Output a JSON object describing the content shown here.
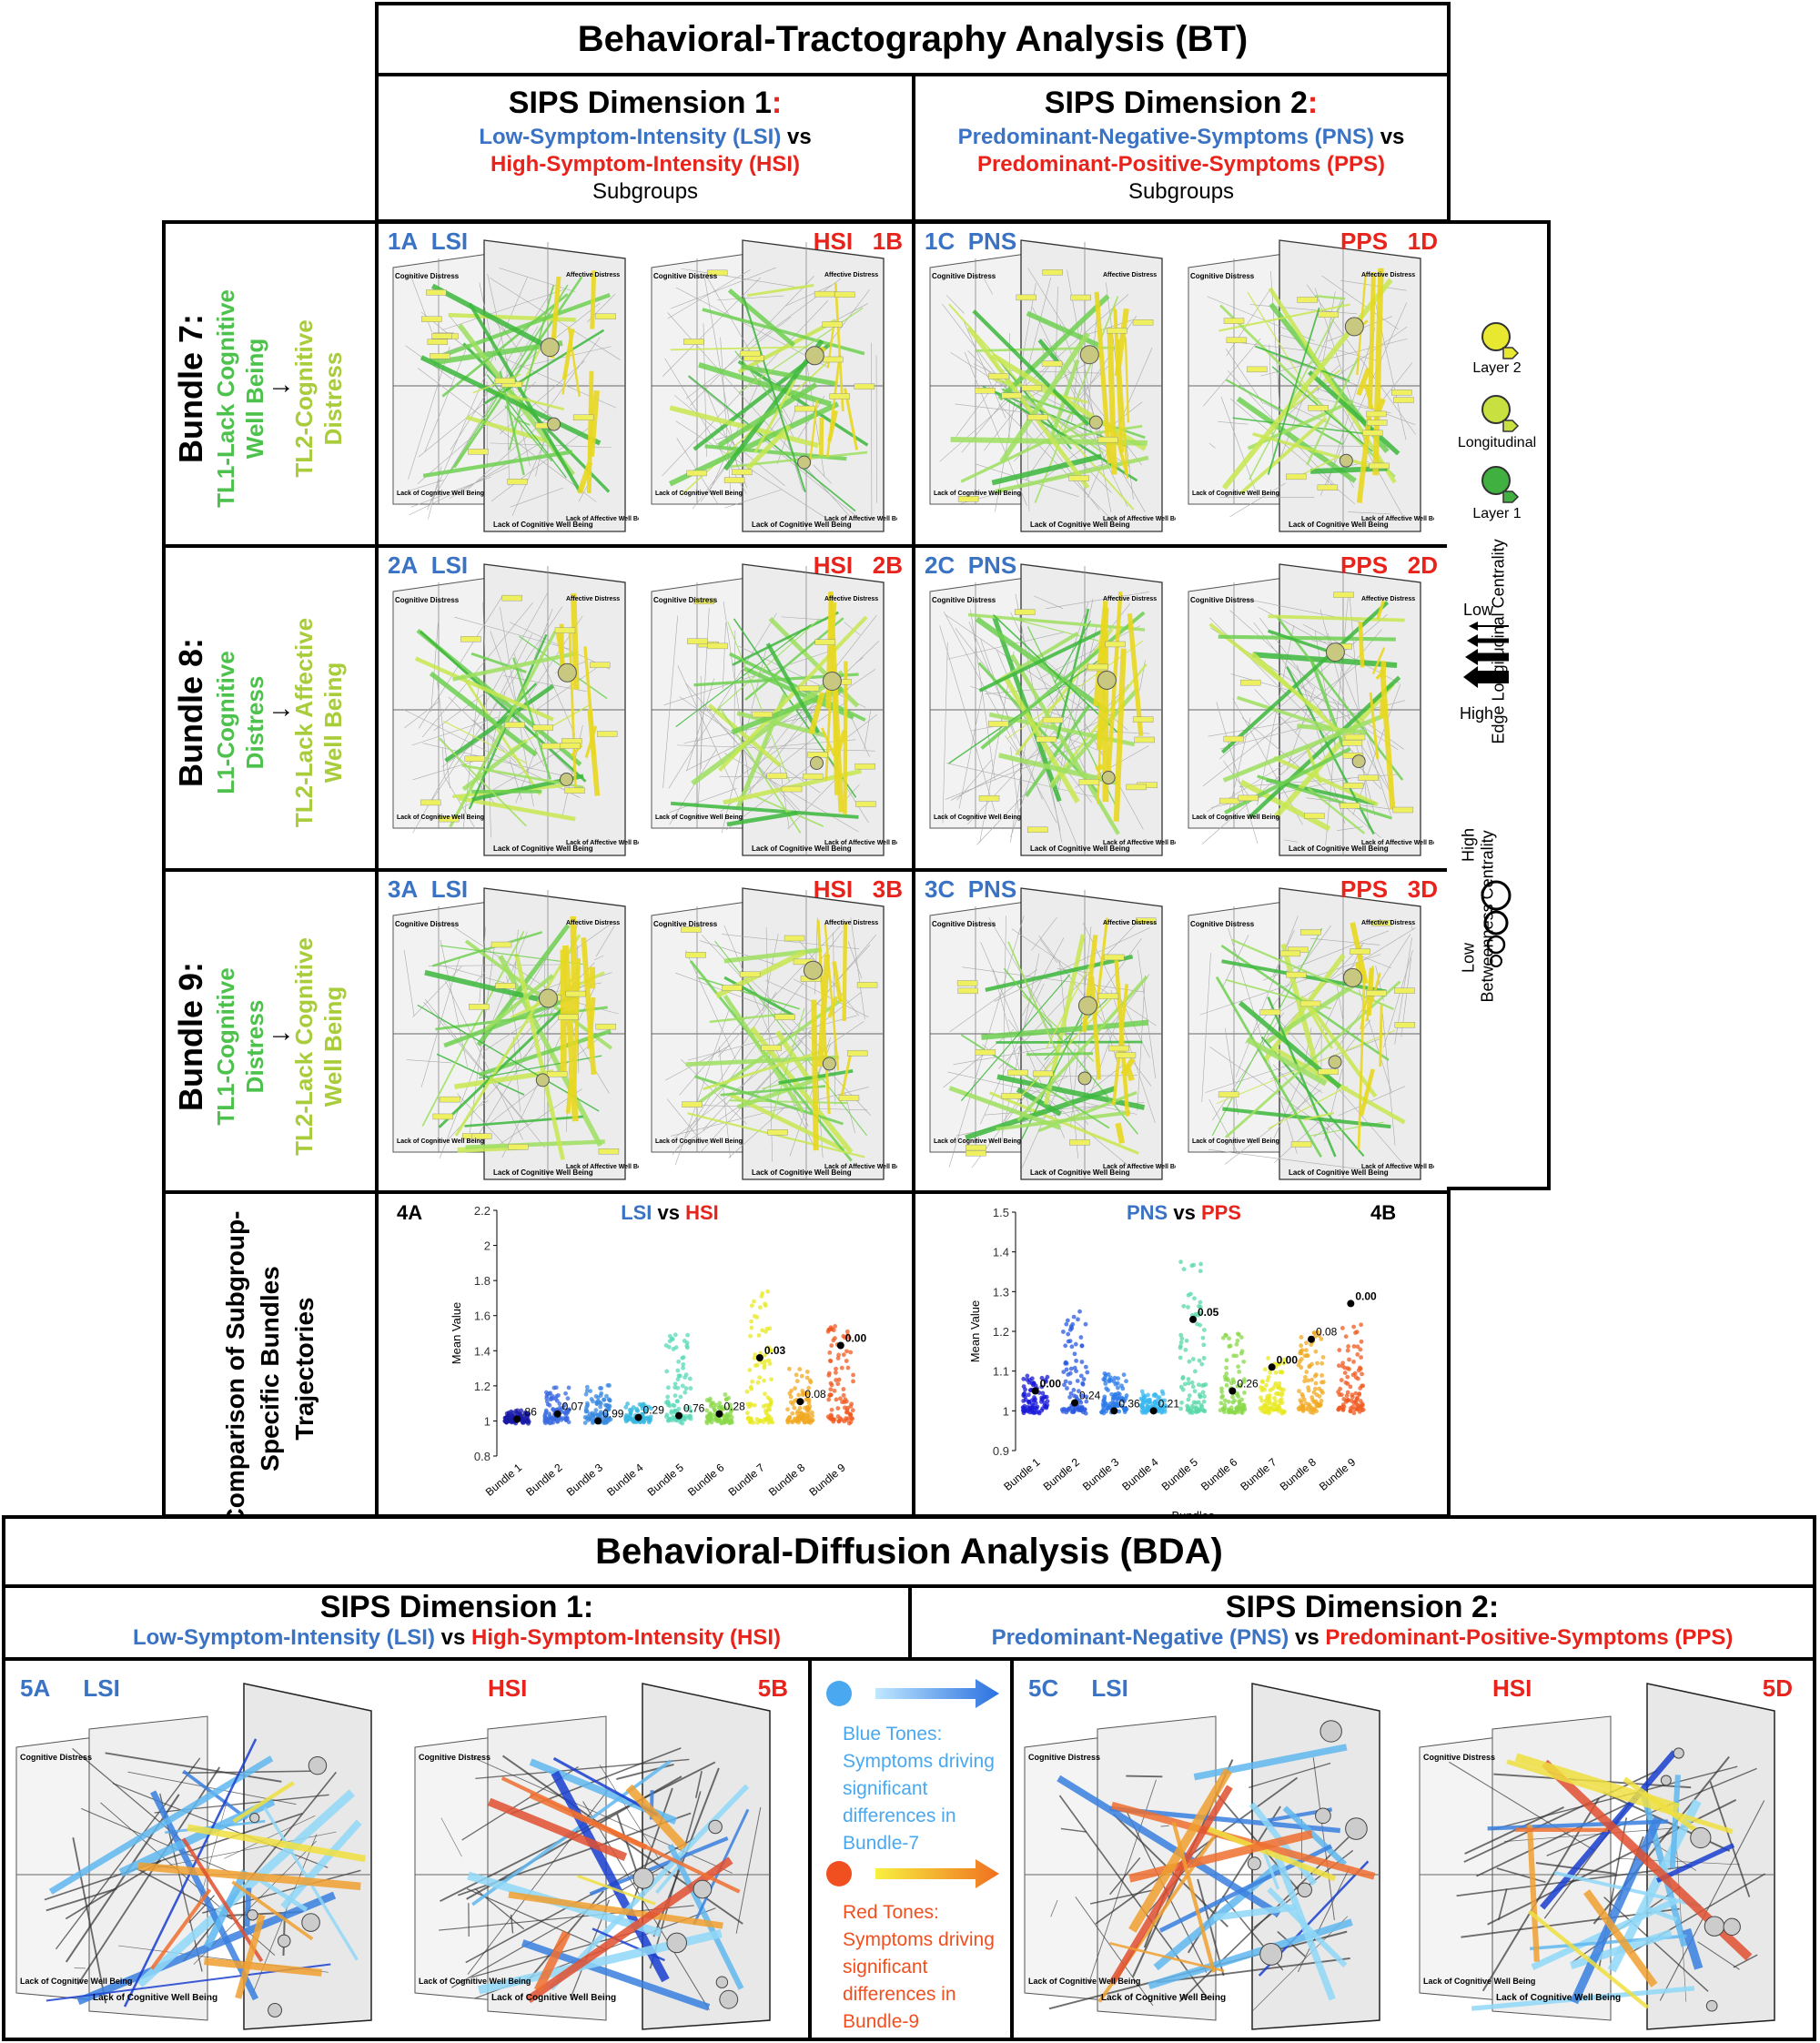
{
  "bt": {
    "title": "Behavioral-Tractography Analysis (BT)",
    "dim1": {
      "heading": "SIPS Dimension 1",
      "colon": ":",
      "lsi": "Low-Symptom-Intensity (LSI)",
      "vs": "vs",
      "hsi": "High-Symptom-Intensity (HSI)",
      "sub": "Subgroups"
    },
    "dim2": {
      "heading": "SIPS Dimension 2",
      "colon": ":",
      "pns": "Predominant-Negative-Symptoms (PNS)",
      "vs": "vs",
      "pps": "Predominant-Positive-Symptoms (PPS)",
      "sub": "Subgroups"
    }
  },
  "bundles": [
    {
      "label": "Bundle 7:",
      "from": "TL1-Lack Cognitive Well Being",
      "arrow": "→",
      "to": "TL2-Cognitive Distress",
      "panels": [
        {
          "id": "1A",
          "grp": "LSI"
        },
        {
          "id": "1B",
          "grp": "HSI"
        },
        {
          "id": "1C",
          "grp": "PNS"
        },
        {
          "id": "1D",
          "grp": "PPS"
        }
      ]
    },
    {
      "label": "Bundle 8:",
      "from": "L1-Cognitive Distress",
      "arrow": "→",
      "to": "TL2-Lack Affective Well Being",
      "panels": [
        {
          "id": "2A",
          "grp": "LSI"
        },
        {
          "id": "2B",
          "grp": "HSI"
        },
        {
          "id": "2C",
          "grp": "PNS"
        },
        {
          "id": "2D",
          "grp": "PPS"
        }
      ]
    },
    {
      "label": "Bundle 9:",
      "from": "TL1-Cognitive Distress",
      "arrow": "→",
      "to": "TL2-Lack Cognitive Well Being",
      "panels": [
        {
          "id": "3A",
          "grp": "LSI"
        },
        {
          "id": "3B",
          "grp": "HSI"
        },
        {
          "id": "3C",
          "grp": "PNS"
        },
        {
          "id": "3D",
          "grp": "PPS"
        }
      ]
    }
  ],
  "axis_labels": {
    "tl": "Cognitive Distress",
    "tr": "Affective Distress",
    "bl": "Lack of Cognitive Well Being",
    "br": "Lack of Affective Well Being"
  },
  "legend": {
    "layer2": "Layer 2",
    "longitudinal": "Longitudinal",
    "layer1": "Layer 1",
    "low": "Low",
    "high": "High",
    "edge_centrality": "Edge Longitudinal Centrality",
    "betweenness": "Betweenness Centrality",
    "b_low": "Low",
    "b_high": "High"
  },
  "comparison": {
    "label": "Comparison of Subgroup-Specific Bundles Trajectories"
  },
  "chart_data": [
    {
      "type": "scatter",
      "id": "4A",
      "title_a": "LSI",
      "title_vs": "vs",
      "title_b": "HSI",
      "xlabel": "Bundles",
      "ylabel": "Mean Value",
      "ylim": [
        0.8,
        2.2
      ],
      "yticks": [
        "0.8",
        "1",
        "1.2",
        "1.4",
        "1.6",
        "1.8",
        "2",
        "2.2"
      ],
      "categories": [
        "Bundle 1",
        "Bundle 2",
        "Bundle 3",
        "Bundle 4",
        "Bundle 5",
        "Bundle 6",
        "Bundle 7",
        "Bundle 8",
        "Bundle 9"
      ],
      "means": [
        1.01,
        1.04,
        1.0,
        1.02,
        1.03,
        1.04,
        1.36,
        1.11,
        1.43
      ],
      "pvalues": [
        ".86",
        "0.07",
        "0.99",
        "0.29",
        "0.76",
        "0.28",
        "0.03",
        "0.08",
        "0.00"
      ],
      "spread_max": [
        1.05,
        1.2,
        1.2,
        1.1,
        1.5,
        1.15,
        1.75,
        1.3,
        1.55
      ],
      "colors": [
        "#1a1aa8",
        "#3a6ae0",
        "#3a8ae0",
        "#3ab8e0",
        "#5ad8b8",
        "#8ad848",
        "#e8e820",
        "#f0a820",
        "#f05a20"
      ]
    },
    {
      "type": "scatter",
      "id": "4B",
      "title_a": "PNS",
      "title_vs": "vs",
      "title_b": "PPS",
      "xlabel": "Bundles",
      "ylabel": "Mean Value",
      "ylim": [
        0.9,
        1.5
      ],
      "yticks": [
        "0.9",
        "1",
        "1.1",
        "1.2",
        "1.3",
        "1.4",
        "1.5"
      ],
      "categories": [
        "Bundle 1",
        "Bundle 2",
        "Bundle 3",
        "Bundle 4",
        "Bundle 5",
        "Bundle 6",
        "Bundle 7",
        "Bundle 8",
        "Bundle 9"
      ],
      "means": [
        1.05,
        1.02,
        1.0,
        1.0,
        1.23,
        1.05,
        1.11,
        1.18,
        1.27
      ],
      "pvalues": [
        "0.00",
        "0.24",
        "0.36",
        "0.21",
        "0.05",
        "0.26",
        "0.00",
        "0.08",
        "0.00"
      ],
      "spread_max": [
        1.1,
        1.25,
        1.1,
        1.05,
        1.38,
        1.2,
        1.13,
        1.2,
        1.22
      ],
      "colors": [
        "#1a1ad8",
        "#2a5ae0",
        "#2a7ae8",
        "#3ab8f0",
        "#5ad8a8",
        "#8ad848",
        "#e8e820",
        "#f0a820",
        "#f05a20"
      ]
    }
  ],
  "bda": {
    "title": "Behavioral-Diffusion Analysis (BDA)",
    "dim1": {
      "heading": "SIPS Dimension 1:",
      "lsi": "Low-Symptom-Intensity (LSI)",
      "vs": "vs",
      "hsi": "High-Symptom-Intensity (HSI)"
    },
    "dim2": {
      "heading": "SIPS Dimension 2:",
      "pns": "Predominant-Negative (PNS)",
      "vs": "vs",
      "pps": "Predominant-Positive-Symptoms (PPS)"
    },
    "panels": [
      {
        "id": "5A",
        "grp": "LSI"
      },
      {
        "id": "5B",
        "grp": "HSI"
      },
      {
        "id": "5C",
        "grp": "LSI"
      },
      {
        "id": "5D",
        "grp": "HSI"
      }
    ],
    "blue_legend": "Blue Tones: Symptoms driving significant differences in Bundle-7",
    "red_legend": "Red Tones: Symptoms driving significant differences in Bundle-9",
    "colors": {
      "blue": "#4aa8f0",
      "red": "#f05020"
    }
  }
}
